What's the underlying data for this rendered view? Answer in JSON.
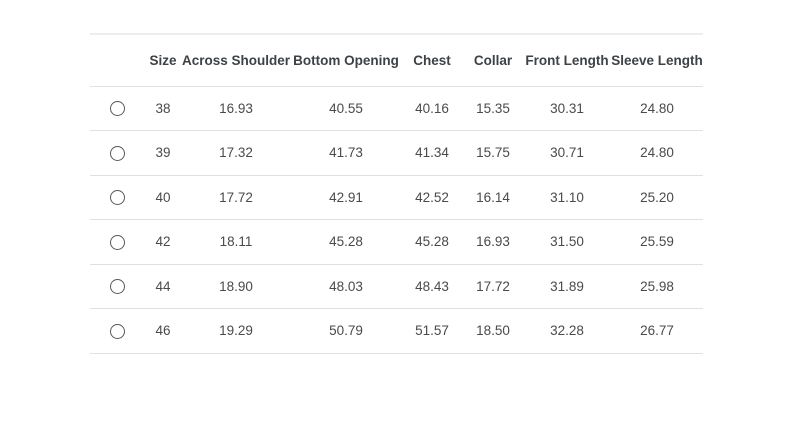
{
  "size_chart": {
    "headers": [
      "",
      "Size",
      "Across Shoulder",
      "Bottom Opening",
      "Chest",
      "Collar",
      "Front Length",
      "Sleeve Length"
    ],
    "rows": [
      [
        "38",
        "16.93",
        "40.55",
        "40.16",
        "15.35",
        "30.31",
        "24.80"
      ],
      [
        "39",
        "17.32",
        "41.73",
        "41.34",
        "15.75",
        "30.71",
        "24.80"
      ],
      [
        "40",
        "17.72",
        "42.91",
        "42.52",
        "16.14",
        "31.10",
        "25.20"
      ],
      [
        "42",
        "18.11",
        "45.28",
        "45.28",
        "16.93",
        "31.50",
        "25.59"
      ],
      [
        "44",
        "18.90",
        "48.03",
        "48.43",
        "17.72",
        "31.89",
        "25.98"
      ],
      [
        "46",
        "19.29",
        "50.79",
        "51.57",
        "18.50",
        "32.28",
        "26.77"
      ]
    ],
    "radio_selected_index": null,
    "colors": {
      "border_top": "#ededed",
      "row_divider": "#e0e0e0",
      "header_text": "#3d4246",
      "cell_text": "#4a4a4a",
      "radio_border": "#55595c"
    }
  }
}
